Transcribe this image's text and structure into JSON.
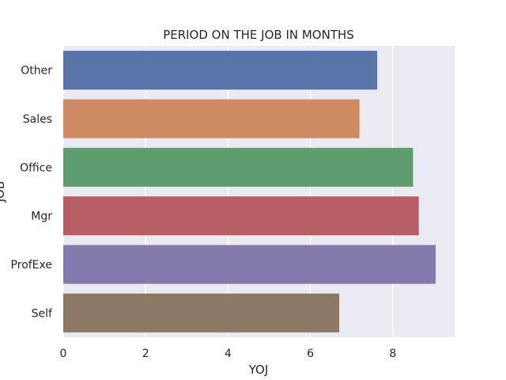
{
  "chart_data": {
    "type": "bar",
    "orientation": "horizontal",
    "title": "PERIOD ON THE JOB IN MONTHS",
    "xlabel": "YOJ",
    "ylabel": "JOB",
    "categories": [
      "Other",
      "Sales",
      "Office",
      "Mgr",
      "ProfExe",
      "Self"
    ],
    "values": [
      7.62,
      7.19,
      8.49,
      8.63,
      9.04,
      6.7
    ],
    "colors": [
      "#5874a8",
      "#cd8a63",
      "#5e9e6e",
      "#b65e63",
      "#8679ad",
      "#8d7866"
    ],
    "xlim": [
      0,
      9.5
    ],
    "xticks": [
      0,
      2,
      4,
      6,
      8
    ],
    "grid": true,
    "background": "#eaeaf2",
    "grid_color": "#ffffff"
  }
}
